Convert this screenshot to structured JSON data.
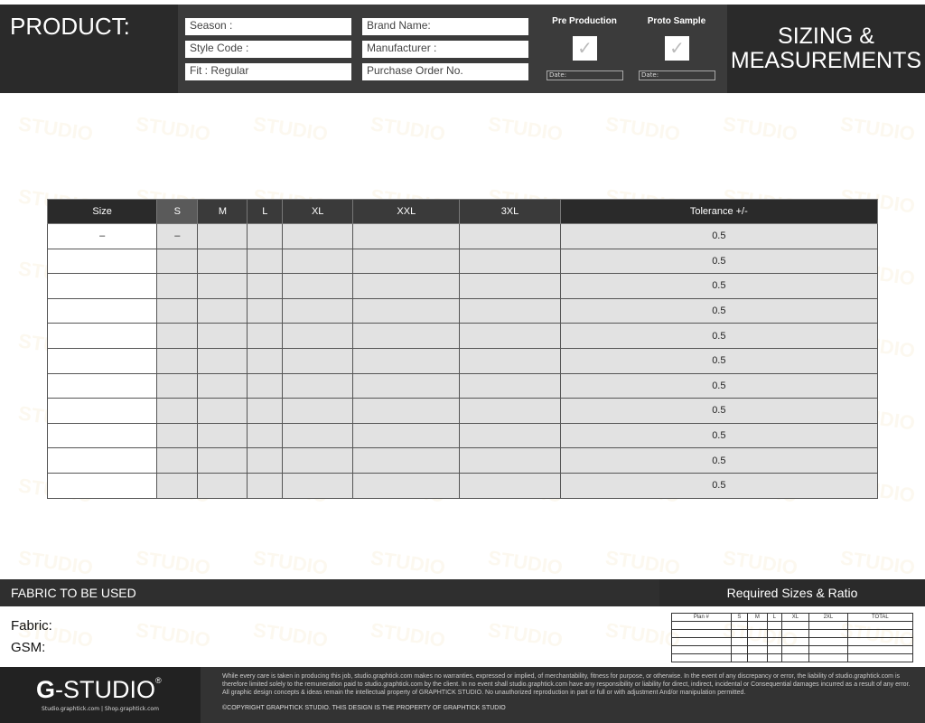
{
  "header": {
    "product_label": "PRODUCT:",
    "fields": [
      "Season :",
      "Style Code :",
      "Fit : Regular",
      "Brand Name:",
      "Manufacturer :",
      "Purchase Order No."
    ],
    "approvals": [
      {
        "label": "Pre Production",
        "check": "✓",
        "date": "Date:"
      },
      {
        "label": "Proto Sample",
        "check": "✓",
        "date": "Date:"
      }
    ],
    "title_line1": "SIZING &",
    "title_line2": "MEASUREMENTS"
  },
  "table": {
    "columns": [
      "Size",
      "S",
      "M",
      "L",
      "XL",
      "XXL",
      "3XL",
      "Tolerance +/-"
    ],
    "first_row": [
      "–",
      "–"
    ],
    "tolerance": [
      "0.5",
      "0.5",
      "0.5",
      "0.5",
      "0.5",
      "0.5",
      "0.5",
      "0.5",
      "0.5",
      "0.5",
      "0.5"
    ]
  },
  "fabric": {
    "title": "FABRIC TO BE USED",
    "fabric_label": "Fabric:",
    "gsm_label": "GSM:"
  },
  "ratio": {
    "title": "Required Sizes & Ratio",
    "columns": [
      "Plan #",
      "S",
      "M",
      "L",
      "XL",
      "2XL",
      "TOTAL"
    ]
  },
  "footer": {
    "logo_bold": "G",
    "logo_rest": "-STUDIO",
    "logo_mark": "®",
    "links": "Studio.graphtick.com | Shop.graphtick.com",
    "legal": "While every care is taken in producing this job, studio.graphtick.com makes no warranties, expressed or implied, of merchantability, fitness for purpose, or otherwise. In the event of any discrepancy or error, the liability of studio.graphtick.com is therefore limited solely to the remuneration paid to studio.graphtick.com by the client. In no event shall studio.graphtick.com have any responsibility or liability for direct, indirect, incidental or Consequential damages incurred as a result of any error. All graphic design concepts & ideas remain the intellectual property of GRAPHTICK STUDIO. No unauthorized reproduction in part or full or with adjustment And/or manipulation permitted.",
    "copyright": "©COPYRIGHT GRAPHTICK STUDIO. THIS DESIGN IS THE PROPERTY OF GRAPHTICK STUDIO"
  },
  "watermark": "STUDIO"
}
